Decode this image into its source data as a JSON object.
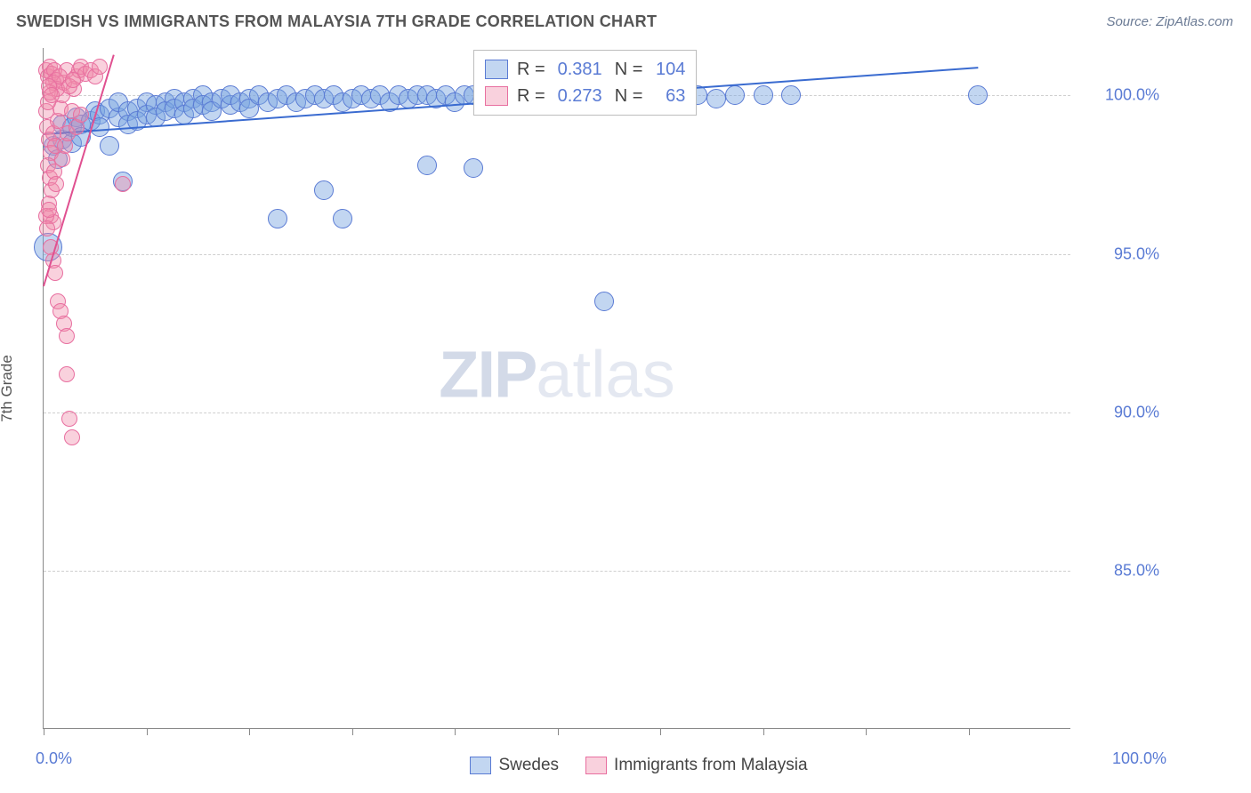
{
  "header": {
    "title": "SWEDISH VS IMMIGRANTS FROM MALAYSIA 7TH GRADE CORRELATION CHART",
    "source": "Source: ZipAtlas.com"
  },
  "chart": {
    "type": "scatter",
    "y_axis_title": "7th Grade",
    "xlim": [
      0,
      110
    ],
    "ylim": [
      80,
      101.5
    ],
    "x_min_label": "0.0%",
    "x_max_label": "100.0%",
    "y_ticks": [
      {
        "v": 85,
        "label": "85.0%"
      },
      {
        "v": 90,
        "label": "90.0%"
      },
      {
        "v": 95,
        "label": "95.0%"
      },
      {
        "v": 100,
        "label": "100.0%"
      }
    ],
    "x_tick_positions": [
      0,
      11,
      22,
      33,
      44,
      55,
      66,
      77,
      88,
      99
    ],
    "gridline_color": "#cfcfcf",
    "axis_color": "#888888",
    "background_color": "#ffffff",
    "watermark": {
      "bold": "ZIP",
      "light": "atlas"
    },
    "series": [
      {
        "name": "Swedes",
        "marker_fill": "rgba(120,165,225,0.45)",
        "marker_stroke": "#5a7bd4",
        "r_value": "0.381",
        "n_value": "104",
        "trend": {
          "x1": 0,
          "y1": 98.8,
          "x2": 100,
          "y2": 100.9,
          "color": "#3a6bd0",
          "width": 2
        },
        "points": [
          [
            0.5,
            95.2,
            16
          ],
          [
            1,
            98.4,
            11
          ],
          [
            1.5,
            98.0,
            11
          ],
          [
            2,
            98.6,
            11
          ],
          [
            2,
            99.1,
            11
          ],
          [
            3,
            98.5,
            11
          ],
          [
            3,
            99.0,
            11
          ],
          [
            3.5,
            99.3,
            11
          ],
          [
            4,
            99.1,
            11
          ],
          [
            4,
            98.7,
            11
          ],
          [
            5,
            99.2,
            11
          ],
          [
            5.5,
            99.5,
            11
          ],
          [
            6,
            99.4,
            11
          ],
          [
            6,
            99.0,
            11
          ],
          [
            7,
            98.4,
            11
          ],
          [
            7,
            99.6,
            11
          ],
          [
            8,
            99.3,
            11
          ],
          [
            8,
            99.8,
            11
          ],
          [
            8.5,
            97.3,
            11
          ],
          [
            9,
            99.5,
            11
          ],
          [
            9,
            99.1,
            11
          ],
          [
            10,
            99.6,
            11
          ],
          [
            10,
            99.2,
            11
          ],
          [
            11,
            99.8,
            11
          ],
          [
            11,
            99.4,
            11
          ],
          [
            12,
            99.7,
            11
          ],
          [
            12,
            99.3,
            11
          ],
          [
            13,
            99.8,
            11
          ],
          [
            13,
            99.5,
            11
          ],
          [
            14,
            99.9,
            11
          ],
          [
            14,
            99.6,
            11
          ],
          [
            15,
            99.8,
            11
          ],
          [
            15,
            99.4,
            11
          ],
          [
            16,
            99.9,
            11
          ],
          [
            16,
            99.6,
            11
          ],
          [
            17,
            100.0,
            11
          ],
          [
            17,
            99.7,
            11
          ],
          [
            18,
            99.8,
            11
          ],
          [
            18,
            99.5,
            11
          ],
          [
            19,
            99.9,
            11
          ],
          [
            20,
            99.7,
            11
          ],
          [
            20,
            100.0,
            11
          ],
          [
            21,
            99.8,
            11
          ],
          [
            22,
            99.9,
            11
          ],
          [
            22,
            99.6,
            11
          ],
          [
            23,
            100.0,
            11
          ],
          [
            24,
            99.8,
            11
          ],
          [
            25,
            99.9,
            11
          ],
          [
            25,
            96.1,
            11
          ],
          [
            26,
            100.0,
            11
          ],
          [
            27,
            99.8,
            11
          ],
          [
            28,
            99.9,
            11
          ],
          [
            29,
            100.0,
            11
          ],
          [
            30,
            99.9,
            11
          ],
          [
            30,
            97.0,
            11
          ],
          [
            31,
            100.0,
            11
          ],
          [
            32,
            99.8,
            11
          ],
          [
            32,
            96.1,
            11
          ],
          [
            33,
            99.9,
            11
          ],
          [
            34,
            100.0,
            11
          ],
          [
            35,
            99.9,
            11
          ],
          [
            36,
            100.0,
            11
          ],
          [
            37,
            99.8,
            11
          ],
          [
            38,
            100.0,
            11
          ],
          [
            39,
            99.9,
            11
          ],
          [
            40,
            100.0,
            11
          ],
          [
            41,
            97.8,
            11
          ],
          [
            41,
            100.0,
            11
          ],
          [
            42,
            99.9,
            11
          ],
          [
            43,
            100.0,
            11
          ],
          [
            44,
            99.8,
            11
          ],
          [
            45,
            100.0,
            11
          ],
          [
            46,
            97.7,
            11
          ],
          [
            46,
            100.0,
            11
          ],
          [
            47,
            99.9,
            11
          ],
          [
            48,
            100.0,
            11
          ],
          [
            49,
            99.8,
            11
          ],
          [
            50,
            100.0,
            11
          ],
          [
            51,
            99.9,
            11
          ],
          [
            52,
            100.0,
            11
          ],
          [
            53,
            99.8,
            11
          ],
          [
            54,
            100.0,
            11
          ],
          [
            55,
            99.7,
            11
          ],
          [
            56,
            100.0,
            11
          ],
          [
            57,
            99.9,
            11
          ],
          [
            58,
            100.0,
            11
          ],
          [
            60,
            93.5,
            11
          ],
          [
            60,
            100.0,
            11
          ],
          [
            62,
            99.9,
            11
          ],
          [
            63,
            100.0,
            11
          ],
          [
            64,
            100.0,
            11
          ],
          [
            66,
            99.9,
            11
          ],
          [
            67,
            100.0,
            11
          ],
          [
            70,
            100.0,
            11
          ],
          [
            72,
            99.9,
            11
          ],
          [
            74,
            100.0,
            11
          ],
          [
            77,
            100.0,
            11
          ],
          [
            80,
            100.0,
            11
          ],
          [
            100,
            100.0,
            11
          ]
        ]
      },
      {
        "name": "Immigrants from Malaysia",
        "marker_fill": "rgba(240,140,170,0.40)",
        "marker_stroke": "#e86fa0",
        "r_value": "0.273",
        "n_value": "63",
        "trend": {
          "x1": 0,
          "y1": 94.0,
          "x2": 7.5,
          "y2": 101.3,
          "color": "#e05090",
          "width": 2
        },
        "points": [
          [
            0.3,
            100.8,
            9
          ],
          [
            0.5,
            100.6,
            9
          ],
          [
            0.7,
            100.9,
            9
          ],
          [
            0.9,
            100.7,
            9
          ],
          [
            1.1,
            100.8,
            9
          ],
          [
            1.3,
            100.5,
            9
          ],
          [
            0.4,
            99.0,
            9
          ],
          [
            0.6,
            98.6,
            9
          ],
          [
            0.8,
            98.2,
            9
          ],
          [
            1.0,
            98.8,
            9
          ],
          [
            1.2,
            98.4,
            9
          ],
          [
            0.5,
            97.8,
            9
          ],
          [
            0.7,
            97.4,
            9
          ],
          [
            0.9,
            97.0,
            9
          ],
          [
            1.1,
            97.6,
            9
          ],
          [
            1.3,
            97.2,
            9
          ],
          [
            0.6,
            96.6,
            9
          ],
          [
            0.8,
            96.2,
            9
          ],
          [
            1.0,
            96.0,
            9
          ],
          [
            1.5,
            99.2,
            9
          ],
          [
            1.8,
            99.6,
            9
          ],
          [
            2.0,
            100.0,
            9
          ],
          [
            2.2,
            100.4,
            9
          ],
          [
            2.5,
            100.8,
            9
          ],
          [
            2.0,
            98.0,
            9
          ],
          [
            2.3,
            98.4,
            9
          ],
          [
            2.6,
            98.8,
            9
          ],
          [
            3.0,
            99.5,
            9
          ],
          [
            3.2,
            100.2,
            9
          ],
          [
            3.5,
            100.6,
            9
          ],
          [
            3.8,
            100.8,
            9
          ],
          [
            4.0,
            100.9,
            9
          ],
          [
            4.5,
            100.7,
            9
          ],
          [
            5.0,
            100.8,
            9
          ],
          [
            5.5,
            100.6,
            9
          ],
          [
            6.0,
            100.9,
            9
          ],
          [
            1.5,
            93.5,
            9
          ],
          [
            1.8,
            93.2,
            9
          ],
          [
            2.2,
            92.8,
            9
          ],
          [
            2.5,
            92.4,
            9
          ],
          [
            2.5,
            91.2,
            9
          ],
          [
            2.8,
            89.8,
            9
          ],
          [
            3.0,
            89.2,
            9
          ],
          [
            8.5,
            97.2,
            9
          ],
          [
            0.3,
            96.2,
            9
          ],
          [
            0.4,
            95.8,
            9
          ],
          [
            0.6,
            96.4,
            9
          ],
          [
            3.5,
            99.0,
            9
          ],
          [
            4.0,
            99.4,
            9
          ],
          [
            1.0,
            100.4,
            9
          ],
          [
            1.4,
            100.2,
            9
          ],
          [
            1.7,
            100.6,
            9
          ],
          [
            0.3,
            99.5,
            9
          ],
          [
            0.5,
            99.8,
            9
          ],
          [
            0.7,
            100.1,
            9
          ],
          [
            0.8,
            95.2,
            9
          ],
          [
            1.0,
            94.8,
            9
          ],
          [
            1.2,
            94.4,
            9
          ],
          [
            2.8,
            100.3,
            9
          ],
          [
            3.1,
            100.5,
            9
          ],
          [
            0.6,
            100.3,
            9
          ],
          [
            0.9,
            100.0,
            9
          ]
        ]
      }
    ],
    "stats_legend": {
      "r_label": "R =",
      "n_label": "N ="
    },
    "bottom_legend": {
      "items": [
        {
          "label": "Swedes",
          "fill": "rgba(120,165,225,0.45)",
          "stroke": "#5a7bd4"
        },
        {
          "label": "Immigrants from Malaysia",
          "fill": "rgba(240,140,170,0.40)",
          "stroke": "#e86fa0"
        }
      ]
    }
  }
}
